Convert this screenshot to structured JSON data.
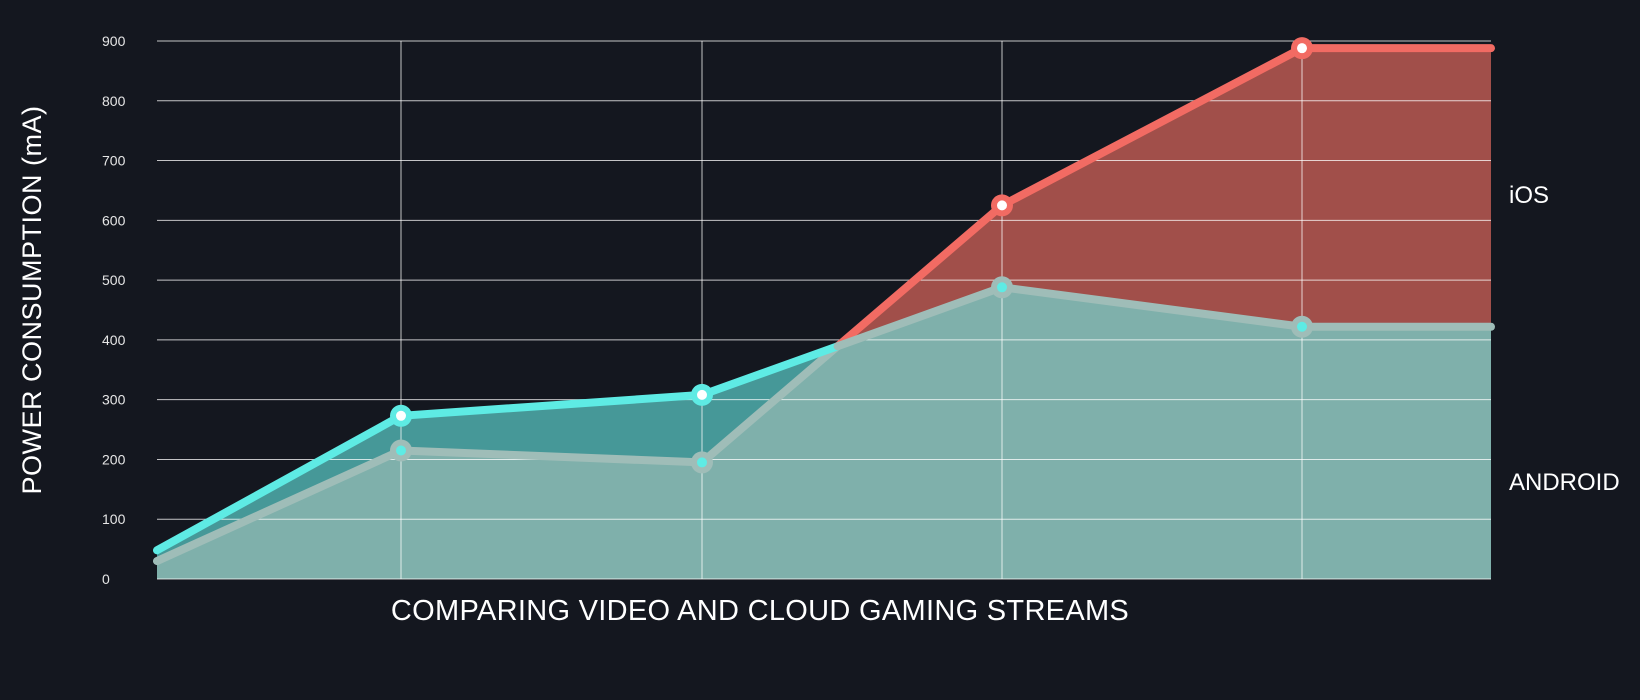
{
  "chart_data": {
    "type": "area",
    "xlabel": "COMPARING VIDEO AND CLOUD GAMING STREAMS",
    "ylabel": "POWER CONSUMPTION (mA)",
    "ylim": [
      0,
      900
    ],
    "yticks": [
      0,
      100,
      200,
      300,
      400,
      500,
      600,
      700,
      800,
      900
    ],
    "grid": true,
    "series": [
      {
        "name": "iOS",
        "color": "#f26b63",
        "fill": "#a14f4a",
        "values": [
          30,
          215,
          195,
          625,
          888,
          888
        ]
      },
      {
        "name": "ANDROID",
        "color": "#5eebe4",
        "fill": "#469898",
        "values": [
          48,
          273,
          308,
          488,
          422,
          422
        ]
      }
    ],
    "overlap_fill": "#7fb0ab",
    "below_line_color": "#9fbdb8",
    "marker_fill": "#ffffff"
  }
}
